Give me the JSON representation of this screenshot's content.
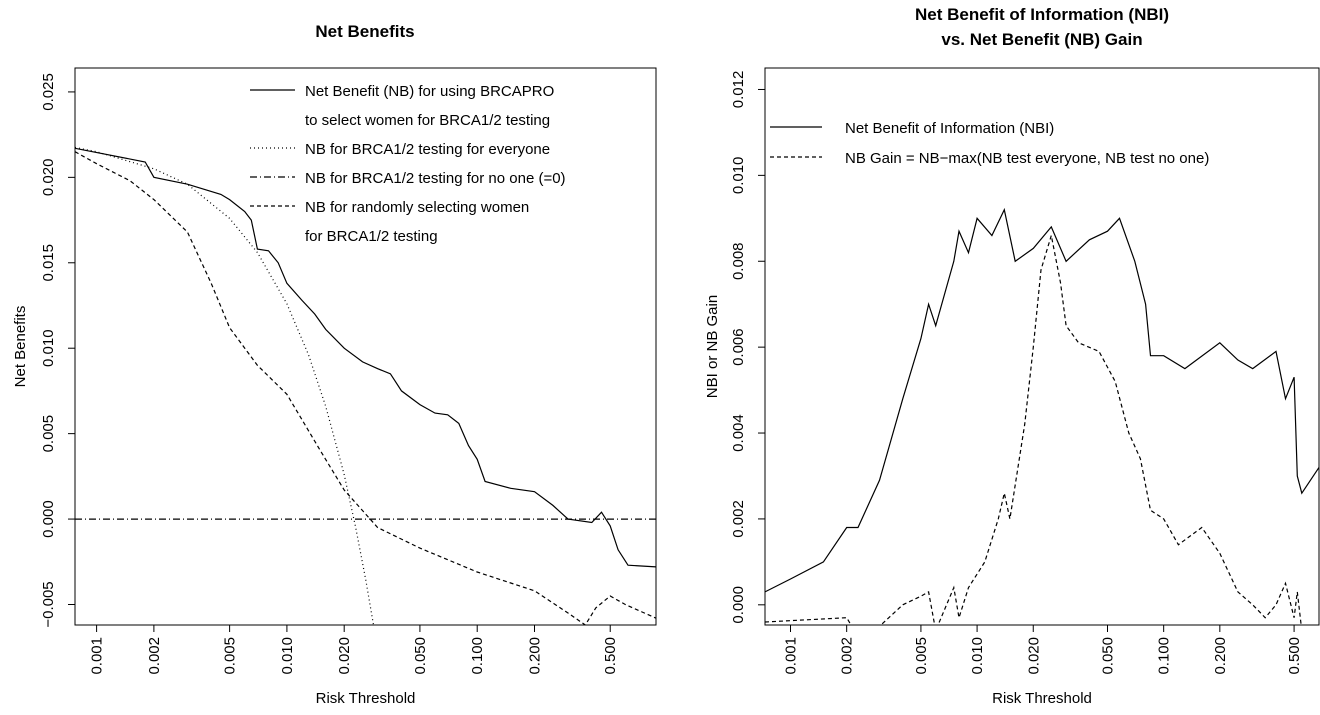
{
  "chart_data": [
    {
      "type": "line",
      "title": [
        "Net Benefits"
      ],
      "xlabel": "Risk Threshold",
      "ylabel": "Net Benefits",
      "xscale": "log",
      "xlim": [
        0.00077,
        0.87
      ],
      "ylim": [
        -0.0062,
        0.0264
      ],
      "xticks": [
        0.001,
        0.002,
        0.005,
        {
          "value": 0.01,
          "label": "0.010"
        },
        {
          "value": 0.02,
          "label": "0.020"
        },
        {
          "value": 0.05,
          "label": "0.050"
        },
        {
          "value": 0.1,
          "label": "0.100"
        },
        {
          "value": 0.2,
          "label": "0.200"
        },
        {
          "value": 0.5,
          "label": "0.500"
        }
      ],
      "yticks": [
        {
          "value": -0.005,
          "label": "−0.005"
        },
        {
          "value": 0,
          "label": "0.000"
        },
        0.005,
        {
          "value": 0.01,
          "label": "0.010"
        },
        0.015,
        {
          "value": 0.02,
          "label": "0.020"
        },
        0.025
      ],
      "legend": "top-right",
      "series": [
        {
          "name": [
            "Net Benefit (NB) for using BRCAPRO",
            "to select women for BRCA1/2 testing"
          ],
          "color": "#000000",
          "dash": "solid",
          "x": [
            0.00077,
            0.0018,
            0.002,
            0.003,
            0.0045,
            0.005,
            0.006,
            0.0065,
            0.007,
            0.008,
            0.009,
            0.01,
            0.012,
            0.014,
            0.016,
            0.02,
            0.025,
            0.03,
            0.035,
            0.04,
            0.05,
            0.06,
            0.07,
            0.08,
            0.09,
            0.1,
            0.11,
            0.15,
            0.2,
            0.25,
            0.3,
            0.4,
            0.45,
            0.5,
            0.55,
            0.62,
            0.87
          ],
          "values": [
            0.0217,
            0.0209,
            0.02,
            0.0196,
            0.019,
            0.0187,
            0.018,
            0.0175,
            0.0158,
            0.0157,
            0.015,
            0.0138,
            0.0128,
            0.012,
            0.0111,
            0.01,
            0.0092,
            0.0088,
            0.0085,
            0.0075,
            0.0067,
            0.0062,
            0.0061,
            0.0056,
            0.0043,
            0.0035,
            0.0022,
            0.0018,
            0.0016,
            0.0008,
            0.0,
            -0.0002,
            0.0004,
            -0.0004,
            -0.0018,
            -0.0027,
            -0.0028
          ]
        },
        {
          "name": [
            "NB for BRCA1/2 testing for everyone"
          ],
          "color": "#000000",
          "dash": "dotted",
          "x": [
            0.00077,
            0.001,
            0.002,
            0.003,
            0.005,
            0.007,
            0.01,
            0.013,
            0.016,
            0.02,
            0.023,
            0.026,
            0.0285
          ],
          "values": [
            0.02175,
            0.0215,
            0.0205,
            0.0196,
            0.0176,
            0.0156,
            0.0126,
            0.0096,
            0.0066,
            0.0026,
            -0.0005,
            -0.0036,
            -0.0062
          ]
        },
        {
          "name": [
            "NB for BRCA1/2 testing for no one (=0)"
          ],
          "color": "#000000",
          "dash": "dotdash",
          "x": [
            0.00077,
            0.87
          ],
          "values": [
            0,
            0
          ]
        },
        {
          "name": [
            "NB for randomly selecting women",
            "for BRCA1/2 testing"
          ],
          "color": "#000000",
          "dash": "dashed",
          "x": [
            0.00077,
            0.001,
            0.0015,
            0.002,
            0.003,
            0.004,
            0.005,
            0.007,
            0.01,
            0.015,
            0.02,
            0.03,
            0.05,
            0.1,
            0.2,
            0.3,
            0.37,
            0.42,
            0.5,
            0.6,
            0.87
          ],
          "values": [
            0.0215,
            0.0208,
            0.0198,
            0.0187,
            0.0168,
            0.0138,
            0.0112,
            0.009,
            0.0073,
            0.004,
            0.0017,
            -0.0005,
            -0.0017,
            -0.0031,
            -0.0042,
            -0.0055,
            -0.0062,
            -0.0052,
            -0.0045,
            -0.005,
            -0.0058
          ]
        }
      ]
    },
    {
      "type": "line",
      "title": [
        "Net Benefit of Information (NBI)",
        "vs. Net Benefit (NB) Gain"
      ],
      "xlabel": "Risk Threshold",
      "ylabel": "NBI or NB Gain",
      "xscale": "log",
      "xlim": [
        0.00073,
        0.68
      ],
      "ylim": [
        -0.00047,
        0.0125
      ],
      "xticks": [
        0.001,
        0.002,
        0.005,
        {
          "value": 0.01,
          "label": "0.010"
        },
        {
          "value": 0.02,
          "label": "0.020"
        },
        {
          "value": 0.05,
          "label": "0.050"
        },
        {
          "value": 0.1,
          "label": "0.100"
        },
        {
          "value": 0.2,
          "label": "0.200"
        },
        {
          "value": 0.5,
          "label": "0.500"
        }
      ],
      "yticks": [
        {
          "value": 0,
          "label": "0.000"
        },
        0.002,
        0.004,
        0.006,
        0.008,
        {
          "value": 0.01,
          "label": "0.010"
        },
        0.012
      ],
      "legend": "top-left",
      "series": [
        {
          "name": [
            "Net Benefit of Information (NBI)"
          ],
          "color": "#000000",
          "dash": "solid",
          "x": [
            0.00073,
            0.001,
            0.0015,
            0.002,
            0.0023,
            0.003,
            0.004,
            0.005,
            0.0055,
            0.006,
            0.0075,
            0.008,
            0.009,
            0.01,
            0.012,
            0.014,
            0.016,
            0.02,
            0.025,
            0.03,
            0.04,
            0.05,
            0.058,
            0.07,
            0.08,
            0.085,
            0.1,
            0.13,
            0.2,
            0.25,
            0.3,
            0.4,
            0.45,
            0.5,
            0.52,
            0.55,
            0.68
          ],
          "values": [
            0.0003,
            0.0006,
            0.001,
            0.0018,
            0.0018,
            0.0029,
            0.0048,
            0.0062,
            0.007,
            0.0065,
            0.008,
            0.0087,
            0.0082,
            0.009,
            0.0086,
            0.0092,
            0.008,
            0.0083,
            0.0088,
            0.008,
            0.0085,
            0.0087,
            0.009,
            0.008,
            0.007,
            0.0058,
            0.0058,
            0.0055,
            0.0061,
            0.0057,
            0.0055,
            0.0059,
            0.0048,
            0.0053,
            0.003,
            0.0026,
            0.0032
          ]
        },
        {
          "name": [
            "NB Gain = NB−max(NB test everyone, NB test no one)"
          ],
          "color": "#000000",
          "dash": "dashed",
          "x": [
            0.00073,
            0.002,
            0.0022,
            0.003,
            0.004,
            0.005,
            0.0055,
            0.006,
            0.0075,
            0.008,
            0.009,
            0.011,
            0.013,
            0.014,
            0.015,
            0.018,
            0.02,
            0.022,
            0.025,
            0.028,
            0.03,
            0.035,
            0.045,
            0.055,
            0.065,
            0.075,
            0.085,
            0.1,
            0.12,
            0.16,
            0.2,
            0.25,
            0.3,
            0.35,
            0.4,
            0.45,
            0.5,
            0.52,
            0.55
          ],
          "values": [
            -0.0004,
            -0.0003,
            -0.0006,
            -0.0005,
            0.0,
            0.0002,
            0.0003,
            -0.0006,
            0.0004,
            -0.0003,
            0.0004,
            0.001,
            0.002,
            0.0026,
            0.002,
            0.0042,
            0.006,
            0.0078,
            0.0086,
            0.0075,
            0.0065,
            0.0061,
            0.0059,
            0.0052,
            0.004,
            0.0034,
            0.0022,
            0.002,
            0.0014,
            0.0018,
            0.0012,
            0.0003,
            0.0,
            -0.0003,
            0.0,
            0.0005,
            -0.0003,
            0.0003,
            -0.0006
          ]
        }
      ]
    }
  ]
}
